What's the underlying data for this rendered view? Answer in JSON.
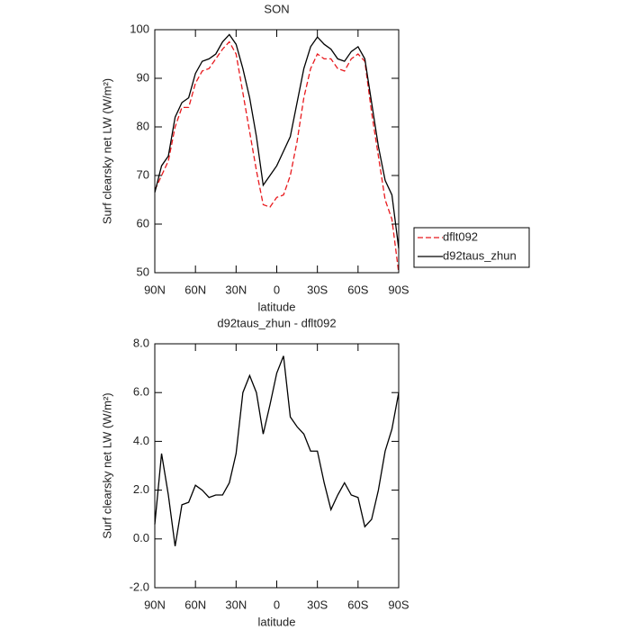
{
  "chart_data": [
    {
      "type": "line",
      "title": "SON",
      "xlabel": "latitude",
      "ylabel": "Surf clearsky net LW (W/m²)",
      "x": [
        90,
        85,
        80,
        75,
        70,
        65,
        60,
        55,
        50,
        45,
        40,
        35,
        30,
        25,
        20,
        15,
        10,
        5,
        0,
        -5,
        -10,
        -15,
        -20,
        -25,
        -30,
        -35,
        -40,
        -45,
        -50,
        -55,
        -60,
        -65,
        -70,
        -75,
        -80,
        -85,
        -90
      ],
      "xlim": [
        90,
        -90
      ],
      "xticks": [
        {
          "value": 90,
          "label": "90N"
        },
        {
          "value": 60,
          "label": "60N"
        },
        {
          "value": 30,
          "label": "30N"
        },
        0,
        {
          "value": -30,
          "label": "30S"
        },
        {
          "value": -60,
          "label": "60S"
        },
        {
          "value": -90,
          "label": "90S"
        }
      ],
      "ylim": [
        50,
        100
      ],
      "yticks": [
        50,
        60,
        70,
        80,
        90,
        100
      ],
      "legend": "right",
      "series": [
        {
          "name": "dflt092",
          "color": "#e8191d",
          "style": "dashed",
          "values": [
            67,
            70,
            73,
            80,
            84,
            84,
            89,
            91.5,
            92,
            94,
            96,
            97.5,
            95,
            87,
            79,
            71,
            64,
            63.5,
            65.5,
            66,
            70,
            77,
            86,
            92,
            95,
            94,
            94,
            92,
            91.5,
            94,
            95,
            93.5,
            83,
            74,
            65,
            61,
            50
          ]
        },
        {
          "name": "d92taus_zhun",
          "color": "#000000",
          "style": "solid",
          "values": [
            66.5,
            72,
            74,
            82,
            85,
            86,
            91,
            93.5,
            94,
            95,
            97.5,
            99,
            97,
            92,
            86,
            78,
            68,
            70,
            72,
            75,
            78,
            85,
            92,
            96.5,
            98.5,
            97,
            96,
            94,
            93.5,
            95.5,
            96.5,
            94,
            85,
            76,
            69,
            66,
            55
          ]
        }
      ]
    },
    {
      "type": "line",
      "title": "d92taus_zhun - dflt092",
      "xlabel": "latitude",
      "ylabel": "Surf clearsky net LW (W/m²)",
      "x": [
        90,
        85,
        80,
        75,
        70,
        65,
        60,
        55,
        50,
        45,
        40,
        35,
        30,
        25,
        20,
        15,
        10,
        5,
        0,
        -5,
        -10,
        -15,
        -20,
        -25,
        -30,
        -35,
        -40,
        -45,
        -50,
        -55,
        -60,
        -65,
        -70,
        -75,
        -80,
        -85,
        -90
      ],
      "xlim": [
        90,
        -90
      ],
      "xticks": [
        {
          "value": 90,
          "label": "90N"
        },
        {
          "value": 60,
          "label": "60N"
        },
        {
          "value": 30,
          "label": "30N"
        },
        0,
        {
          "value": -30,
          "label": "30S"
        },
        {
          "value": -60,
          "label": "60S"
        },
        {
          "value": -90,
          "label": "90S"
        }
      ],
      "ylim": [
        -2,
        8
      ],
      "yticks": [
        {
          "value": -2,
          "label": "-2.0"
        },
        {
          "value": 0,
          "label": "0.0"
        },
        {
          "value": 2,
          "label": "2.0"
        },
        {
          "value": 4,
          "label": "4.0"
        },
        {
          "value": 6,
          "label": "6.0"
        },
        {
          "value": 8,
          "label": "8.0"
        }
      ],
      "color": "#000000",
      "values": [
        0.6,
        3.5,
        1.8,
        -0.3,
        1.4,
        1.5,
        2.2,
        2.0,
        1.7,
        1.8,
        1.8,
        2.3,
        3.5,
        6.0,
        6.7,
        6.0,
        4.3,
        5.5,
        6.8,
        7.5,
        5.0,
        4.6,
        4.3,
        3.6,
        3.6,
        2.3,
        1.2,
        1.8,
        2.3,
        1.8,
        1.7,
        0.5,
        0.8,
        2.0,
        3.6,
        4.5,
        6.0
      ]
    }
  ]
}
